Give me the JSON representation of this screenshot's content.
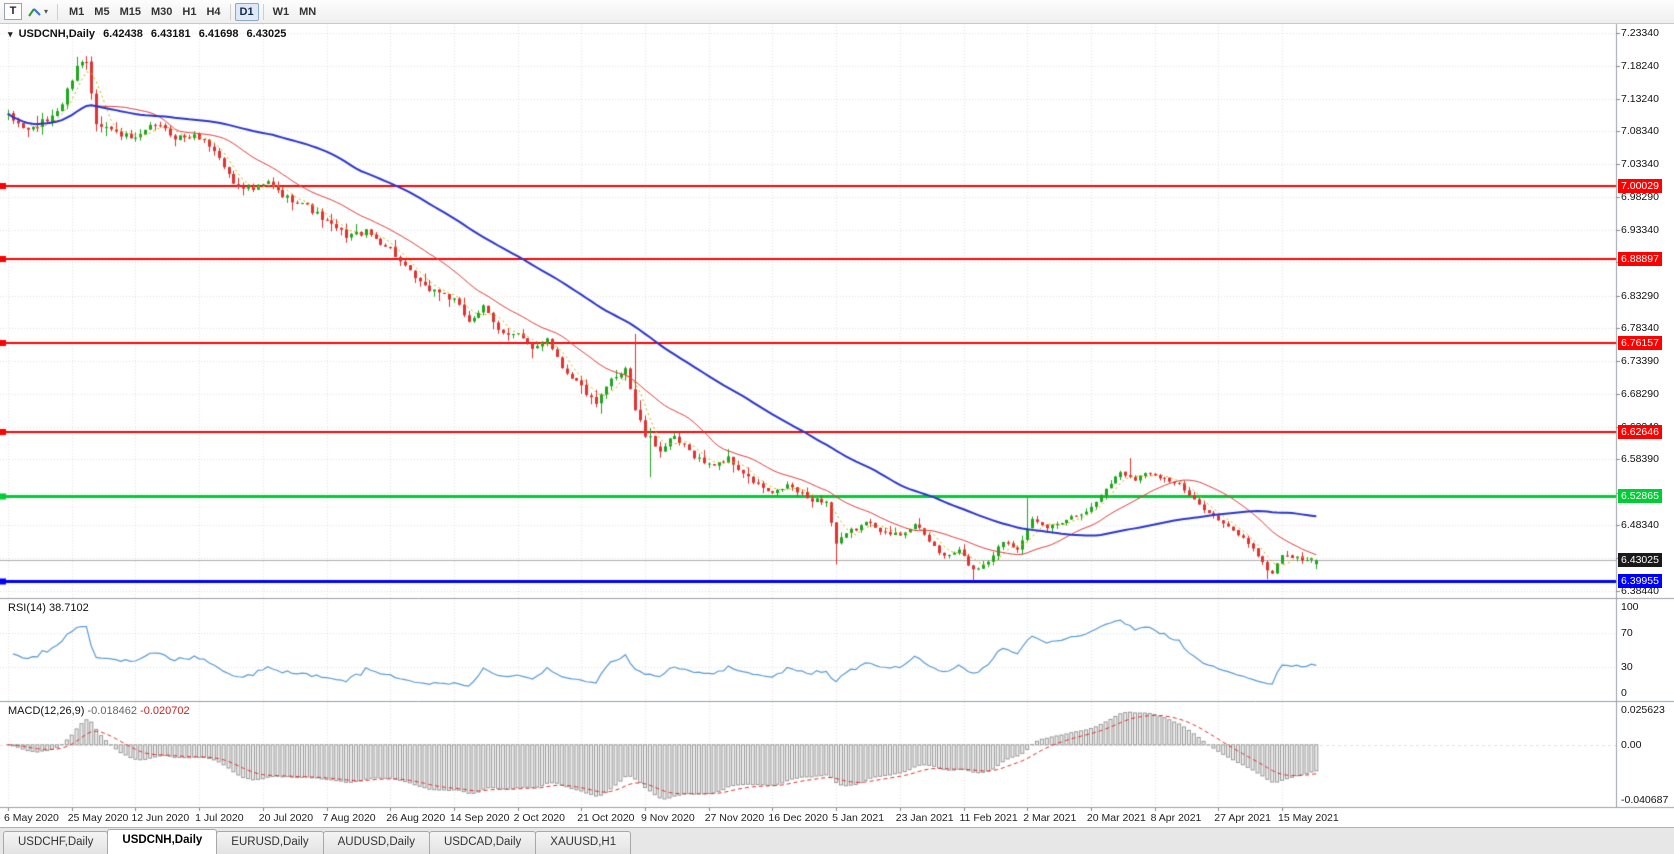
{
  "toolbar": {
    "t_button": "T",
    "timeframes": [
      {
        "label": "M1",
        "active": false
      },
      {
        "label": "M5",
        "active": false
      },
      {
        "label": "M15",
        "active": false
      },
      {
        "label": "M30",
        "active": false
      },
      {
        "label": "H1",
        "active": false
      },
      {
        "label": "H4",
        "active": false
      },
      {
        "label": "D1",
        "active": true
      },
      {
        "label": "W1",
        "active": false
      },
      {
        "label": "MN",
        "active": false
      }
    ]
  },
  "chart": {
    "symbol_timeframe": "USDCNH,Daily",
    "ohlc": {
      "open": "6.42438",
      "high": "6.43181",
      "low": "6.41698",
      "close": "6.43025"
    },
    "price_axis": {
      "min": 6.373,
      "max": 7.247,
      "ticks": [
        "7.23340",
        "7.18240",
        "7.13240",
        "7.08340",
        "7.03340",
        "6.98290",
        "6.93340",
        "6.88390",
        "6.83290",
        "6.78340",
        "6.73390",
        "6.68290",
        "6.63340",
        "6.58390",
        "6.53340",
        "6.48340",
        "6.43340",
        "6.38440"
      ]
    },
    "hlines": [
      {
        "price": 7.00029,
        "label": "7.00029",
        "color": "#FF0000",
        "width": 2
      },
      {
        "price": 6.88897,
        "label": "6.88897",
        "color": "#FF0000",
        "width": 2
      },
      {
        "price": 6.76157,
        "label": "6.76157",
        "color": "#FF0000",
        "width": 2
      },
      {
        "price": 6.62646,
        "label": "6.62646",
        "color": "#FF0000",
        "width": 2
      },
      {
        "price": 6.52865,
        "label": "6.52865",
        "color": "#00CC33",
        "width": 3
      },
      {
        "price": 6.39955,
        "label": "6.39955",
        "color": "#0000FF",
        "width": 3
      }
    ],
    "bid_box": {
      "price": 6.43025,
      "label": "6.43025",
      "color": "#1A1A1A"
    },
    "colors": {
      "up": "#1FA51F",
      "down": "#E03232",
      "ma_fast": "#C9B400",
      "ma_mid": "#E04040",
      "ma_slow": "#2B35CC",
      "rsi_line": "#5B9BD5",
      "macd_signal": "#E03232",
      "grid": "rgba(60,60,60,0.14)",
      "bid_line": "#B0B0B0",
      "macd_bar_fill": "#EFEFEF",
      "macd_bar_stroke": "#9A9A9A"
    }
  },
  "rsi": {
    "name": "RSI(14)",
    "value": "38.7102",
    "levels": [
      70,
      30
    ],
    "axis": [
      {
        "v": 100,
        "label": "100"
      },
      {
        "v": 70,
        "label": "70"
      },
      {
        "v": 30,
        "label": "30"
      },
      {
        "v": 0,
        "label": "0"
      }
    ]
  },
  "macd": {
    "name": "MACD(12,26,9)",
    "macd_value": "-0.018462",
    "signal_value": "-0.020702",
    "max": 0.025623,
    "min": -0.040687,
    "axis": [
      {
        "v": 0.025623,
        "label": "0.025623"
      },
      {
        "v": 0,
        "label": "0.00"
      },
      {
        "v": -0.040687,
        "label": "-0.040687"
      }
    ]
  },
  "tabs": [
    {
      "label": "USDCHF,Daily",
      "active": false
    },
    {
      "label": "USDCNH,Daily",
      "active": true
    },
    {
      "label": "EURUSD,Daily",
      "active": false
    },
    {
      "label": "AUDUSD,Daily",
      "active": false
    },
    {
      "label": "USDCAD,Daily",
      "active": false
    },
    {
      "label": "XAUUSD,H1",
      "active": false
    }
  ],
  "chart_data": {
    "type": "candlestick",
    "title": "USDCNH,Daily",
    "bar_count": 268,
    "bars_per_date_label": 13,
    "ylim": [
      6.373,
      7.247
    ],
    "x_date_labels": [
      "6 May 2020",
      "25 May 2020",
      "12 Jun 2020",
      "1 Jul 2020",
      "20 Jul 2020",
      "7 Aug 2020",
      "26 Aug 2020",
      "14 Sep 2020",
      "2 Oct 2020",
      "21 Oct 2020",
      "9 Nov 2020",
      "27 Nov 2020",
      "16 Dec 2020",
      "5 Jan 2021",
      "23 Jan 2021",
      "11 Feb 2021",
      "2 Mar 2021",
      "20 Mar 2021",
      "8 Apr 2021",
      "27 Apr 2021",
      "15 May 2021"
    ],
    "close_anchors": [
      [
        0,
        7.105
      ],
      [
        4,
        7.085
      ],
      [
        8,
        7.1
      ],
      [
        11,
        7.125
      ],
      [
        14,
        7.185
      ],
      [
        16,
        7.19
      ],
      [
        18,
        7.1
      ],
      [
        21,
        7.085
      ],
      [
        26,
        7.07
      ],
      [
        30,
        7.095
      ],
      [
        34,
        7.075
      ],
      [
        39,
        7.075
      ],
      [
        42,
        7.055
      ],
      [
        46,
        7.005
      ],
      [
        50,
        6.995
      ],
      [
        53,
        7.005
      ],
      [
        56,
        6.985
      ],
      [
        60,
        6.975
      ],
      [
        65,
        6.945
      ],
      [
        69,
        6.925
      ],
      [
        73,
        6.93
      ],
      [
        78,
        6.905
      ],
      [
        81,
        6.875
      ],
      [
        85,
        6.845
      ],
      [
        88,
        6.84
      ],
      [
        91,
        6.825
      ],
      [
        94,
        6.795
      ],
      [
        97,
        6.815
      ],
      [
        100,
        6.78
      ],
      [
        104,
        6.775
      ],
      [
        107,
        6.75
      ],
      [
        110,
        6.77
      ],
      [
        113,
        6.725
      ],
      [
        117,
        6.695
      ],
      [
        120,
        6.665
      ],
      [
        123,
        6.705
      ],
      [
        126,
        6.725
      ],
      [
        128,
        6.66
      ],
      [
        130,
        6.62
      ],
      [
        133,
        6.6
      ],
      [
        136,
        6.615
      ],
      [
        140,
        6.59
      ],
      [
        143,
        6.575
      ],
      [
        147,
        6.585
      ],
      [
        151,
        6.555
      ],
      [
        156,
        6.53
      ],
      [
        159,
        6.545
      ],
      [
        163,
        6.525
      ],
      [
        167,
        6.52
      ],
      [
        169,
        6.455
      ],
      [
        172,
        6.475
      ],
      [
        176,
        6.49
      ],
      [
        179,
        6.47
      ],
      [
        182,
        6.47
      ],
      [
        185,
        6.485
      ],
      [
        188,
        6.46
      ],
      [
        191,
        6.435
      ],
      [
        194,
        6.445
      ],
      [
        197,
        6.415
      ],
      [
        200,
        6.43
      ],
      [
        203,
        6.46
      ],
      [
        206,
        6.45
      ],
      [
        209,
        6.49
      ],
      [
        212,
        6.48
      ],
      [
        215,
        6.49
      ],
      [
        218,
        6.5
      ],
      [
        221,
        6.51
      ],
      [
        224,
        6.54
      ],
      [
        227,
        6.565
      ],
      [
        230,
        6.555
      ],
      [
        233,
        6.565
      ],
      [
        236,
        6.555
      ],
      [
        239,
        6.545
      ],
      [
        242,
        6.52
      ],
      [
        245,
        6.505
      ],
      [
        248,
        6.485
      ],
      [
        251,
        6.47
      ],
      [
        254,
        6.45
      ],
      [
        256,
        6.425
      ],
      [
        258,
        6.41
      ],
      [
        260,
        6.44
      ],
      [
        263,
        6.433
      ],
      [
        267,
        6.43025
      ]
    ],
    "spikes": [
      {
        "bar": 14,
        "high": 7.197
      },
      {
        "bar": 107,
        "low": 6.738
      },
      {
        "bar": 128,
        "high": 6.775
      },
      {
        "bar": 131,
        "low": 6.557
      },
      {
        "bar": 169,
        "low": 6.424
      },
      {
        "bar": 197,
        "low": 6.3995
      },
      {
        "bar": 208,
        "high": 6.525
      },
      {
        "bar": 229,
        "high": 6.586
      },
      {
        "bar": 257,
        "low": 6.4015
      }
    ],
    "last_bar": {
      "open": 6.42438,
      "high": 6.43181,
      "low": 6.41698,
      "close": 6.43025
    },
    "overlays": [
      {
        "type": "sma",
        "period": 5,
        "style": "dashed",
        "color": "#C9B400"
      },
      {
        "type": "sma",
        "period": 18,
        "style": "solid",
        "color": "#E04040"
      },
      {
        "type": "sma",
        "period": 55,
        "style": "solid",
        "color": "#2B35CC"
      }
    ],
    "horizontal_levels": [
      7.00029,
      6.88897,
      6.76157,
      6.62646,
      6.52865,
      6.39955
    ],
    "indicators": [
      {
        "name": "RSI",
        "period": 14,
        "last_value": 38.7102
      },
      {
        "name": "MACD",
        "fast": 12,
        "slow": 26,
        "signal": 9,
        "last_macd": -0.018462,
        "last_signal": -0.020702
      }
    ]
  }
}
